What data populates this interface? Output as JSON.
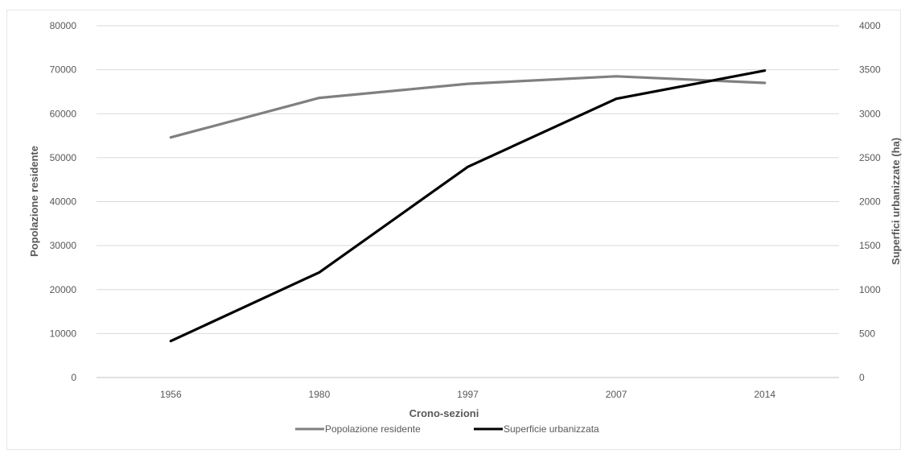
{
  "chart_data": {
    "type": "line",
    "categories": [
      "1956",
      "1980",
      "1997",
      "2007",
      "2014"
    ],
    "xlabel": "Crono-sezioni",
    "ylabel": "Popolazione residente",
    "y2label": "Superfici urbanizzate (ha)",
    "ylim": [
      0,
      80000
    ],
    "y2lim": [
      0,
      4000
    ],
    "yticks": [
      "0",
      "10000",
      "20000",
      "30000",
      "40000",
      "50000",
      "60000",
      "70000",
      "80000"
    ],
    "y2ticks": [
      "0",
      "500",
      "1000",
      "1500",
      "2000",
      "2500",
      "3000",
      "3500",
      "4000"
    ],
    "grid": true,
    "legend_position": "bottom",
    "series": [
      {
        "name": "Popolazione residente",
        "axis": "left",
        "color": "#808080",
        "values": [
          54600,
          63600,
          66800,
          68500,
          67000
        ]
      },
      {
        "name": "Superficie urbanizzata",
        "axis": "right",
        "color": "#000000",
        "values": [
          415,
          1195,
          2395,
          3170,
          3490
        ]
      }
    ]
  }
}
